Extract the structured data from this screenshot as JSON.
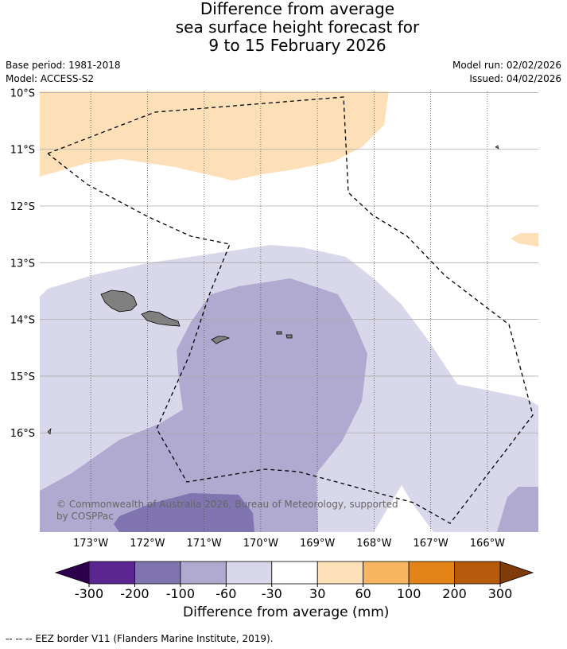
{
  "title_lines": [
    "Difference from average",
    "sea surface height forecast for",
    "9 to 15 February 2026"
  ],
  "meta": {
    "base_period": "Base period: 1981-2018",
    "model": "Model: ACCESS-S2",
    "model_run": "Model run: 02/02/2026",
    "issued": "Issued: 04/02/2026"
  },
  "map": {
    "lon_range": [
      -173.9,
      -165.1
    ],
    "lat_range": [
      -17.75,
      -9.98
    ],
    "lat_labels": [
      "10°S",
      "11°S",
      "12°S",
      "13°S",
      "14°S",
      "15°S",
      "16°S"
    ],
    "lat_values": [
      -10,
      -11,
      -12,
      -13,
      -14,
      -15,
      -16
    ],
    "lon_labels": [
      "173°W",
      "172°W",
      "171°W",
      "170°W",
      "169°W",
      "168°W",
      "167°W",
      "166°W"
    ],
    "lon_values": [
      -173,
      -172,
      -171,
      -170,
      -169,
      -168,
      -167,
      -166
    ],
    "copyright": "© Commonwealth of Australia 2026, Bureau of Meteorology, supported by COSPPac",
    "land_color": "#808080",
    "colors": {
      "c_30_60": "#fde0b8",
      "c_m60_m30": "#d8d8ea",
      "c_m100_m60": "#b0aad0",
      "c_m200_m100": "#8075b0"
    }
  },
  "colorbar": {
    "ticks": [
      "-300",
      "-200",
      "-100",
      "-60",
      "-30",
      "30",
      "60",
      "100",
      "200",
      "300"
    ],
    "colors": [
      "#5b2690",
      "#8075b0",
      "#b0aad0",
      "#d8d8ea",
      "#ffffff",
      "#fde0b8",
      "#f9b55f",
      "#e38418",
      "#b75a0b"
    ],
    "extend_low": "#2d004b",
    "extend_high": "#7f3b08",
    "label": "Difference from average (mm)"
  },
  "footnote": "--  --  -- EEZ border V11 (Flanders Marine Institute, 2019)."
}
